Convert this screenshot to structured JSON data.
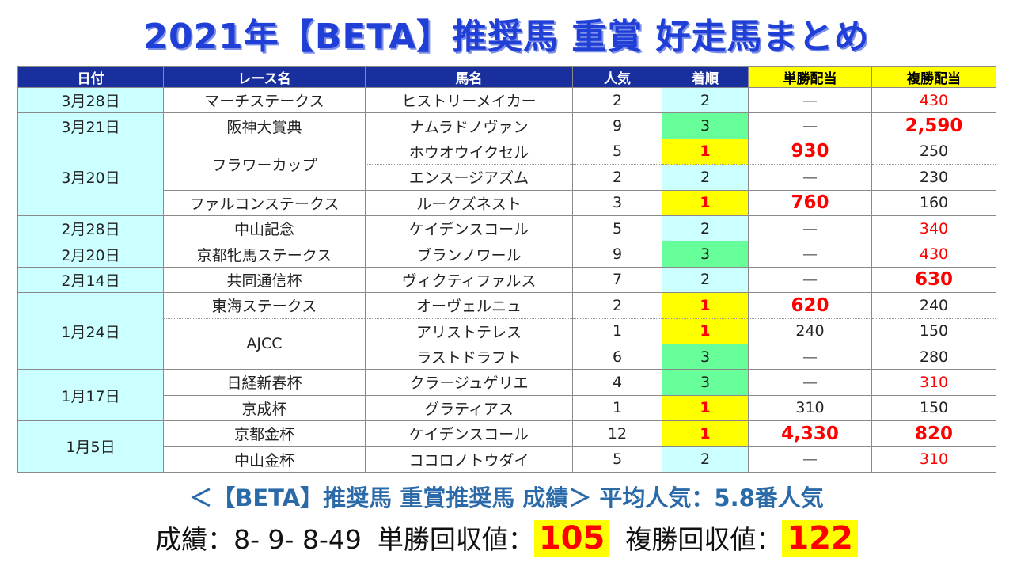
{
  "title": "2021年【BETA】推奨馬 重賞 好走馬まとめ",
  "headers": [
    "日付",
    "レース名",
    "馬名",
    "人気",
    "着順",
    "単勝配当",
    "複勝配当"
  ],
  "rows": [
    {
      "date": "3月28日",
      "race": "マーチステークス",
      "horse": "ヒストリーメイカー",
      "pop": "2",
      "rank": "2",
      "win": "—",
      "place": "430"
    },
    {
      "date": "3月21日",
      "race": "阪神大賞典",
      "horse": "ナムラドノヴァン",
      "pop": "9",
      "rank": "3",
      "win": "—",
      "place": "2,590"
    },
    {
      "date": "3月20日",
      "race": "フラワーカップ",
      "horse": "ホウオウイクセル",
      "pop": "5",
      "rank": "1",
      "win": "930",
      "place": "250"
    },
    {
      "horse": "エンスージアズム",
      "pop": "2",
      "rank": "2",
      "win": "—",
      "place": "230"
    },
    {
      "race": "ファルコンステークス",
      "horse": "ルークズネスト",
      "pop": "3",
      "rank": "1",
      "win": "760",
      "place": "160"
    },
    {
      "date": "2月28日",
      "race": "中山記念",
      "horse": "ケイデンスコール",
      "pop": "5",
      "rank": "2",
      "win": "—",
      "place": "340"
    },
    {
      "date": "2月20日",
      "race": "京都牝馬ステークス",
      "horse": "ブランノワール",
      "pop": "9",
      "rank": "3",
      "win": "—",
      "place": "430"
    },
    {
      "date": "2月14日",
      "race": "共同通信杯",
      "horse": "ヴィクティファルス",
      "pop": "7",
      "rank": "2",
      "win": "—",
      "place": "630"
    },
    {
      "date": "1月24日",
      "race": "東海ステークス",
      "horse": "オーヴェルニュ",
      "pop": "2",
      "rank": "1",
      "win": "620",
      "place": "240"
    },
    {
      "race": "AJCC",
      "horse": "アリストテレス",
      "pop": "1",
      "rank": "1",
      "win": "240",
      "place": "150"
    },
    {
      "horse": "ラストドラフト",
      "pop": "6",
      "rank": "3",
      "win": "—",
      "place": "280"
    },
    {
      "date": "1月17日",
      "race": "日経新春杯",
      "horse": "クラージュゲリエ",
      "pop": "4",
      "rank": "3",
      "win": "—",
      "place": "310"
    },
    {
      "race": "京成杯",
      "horse": "グラティアス",
      "pop": "1",
      "rank": "1",
      "win": "310",
      "place": "150"
    },
    {
      "date": "1月5日",
      "race": "京都金杯",
      "horse": "ケイデンスコール",
      "pop": "12",
      "rank": "1",
      "win": "4,330",
      "place": "820"
    },
    {
      "race": "中山金杯",
      "horse": "ココロノトウダイ",
      "pop": "5",
      "rank": "2",
      "win": "—",
      "place": "310"
    }
  ],
  "summary": {
    "line1": "＜【BETA】推奨馬 重賞推奨馬 成績＞ 平均人気：5.8番人気",
    "record": "成績：8- 9- 8-49",
    "win_label": "単勝回収値：",
    "win_value": "105",
    "place_label": "複勝回収値：",
    "place_value": "122"
  },
  "colors": {
    "title": "#1f3fd6",
    "header_bg": "#1a2f9e",
    "header_highlight": "#ffff00",
    "date_bg": "#ccffff",
    "rank1_bg": "#ffff00",
    "rank2_bg": "#ccffff",
    "rank3_bg": "#66ff99",
    "payout_red": "#ff0000",
    "summary_blue": "#2b6aa8"
  }
}
